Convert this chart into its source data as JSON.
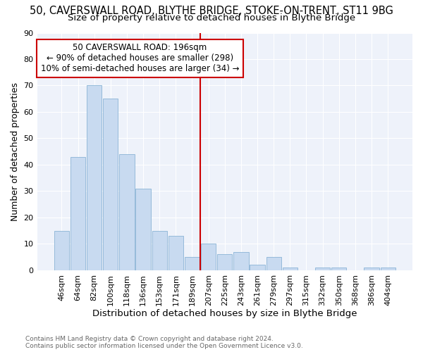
{
  "title": "50, CAVERSWALL ROAD, BLYTHE BRIDGE, STOKE-ON-TRENT, ST11 9BG",
  "subtitle": "Size of property relative to detached houses in Blythe Bridge",
  "xlabel": "Distribution of detached houses by size in Blythe Bridge",
  "ylabel": "Number of detached properties",
  "categories": [
    "46sqm",
    "64sqm",
    "82sqm",
    "100sqm",
    "118sqm",
    "136sqm",
    "153sqm",
    "171sqm",
    "189sqm",
    "207sqm",
    "225sqm",
    "243sqm",
    "261sqm",
    "279sqm",
    "297sqm",
    "315sqm",
    "332sqm",
    "350sqm",
    "368sqm",
    "386sqm",
    "404sqm"
  ],
  "values": [
    15,
    43,
    70,
    65,
    44,
    31,
    15,
    13,
    5,
    10,
    6,
    7,
    2,
    5,
    1,
    0,
    1,
    1,
    0,
    1,
    1
  ],
  "bar_color": "#c8daf0",
  "bar_edge_color": "#7aaad0",
  "vline_x": 8.5,
  "vline_color": "#cc0000",
  "annotation_line1": "50 CAVERSWALL ROAD: 196sqm",
  "annotation_line2": "← 90% of detached houses are smaller (298)",
  "annotation_line3": "10% of semi-detached houses are larger (34) →",
  "annotation_box_color": "#cc0000",
  "ylim": [
    0,
    90
  ],
  "yticks": [
    0,
    10,
    20,
    30,
    40,
    50,
    60,
    70,
    80,
    90
  ],
  "background_color": "#eef2fa",
  "grid_color": "#ffffff",
  "footer": "Contains HM Land Registry data © Crown copyright and database right 2024.\nContains public sector information licensed under the Open Government Licence v3.0.",
  "title_fontsize": 10.5,
  "subtitle_fontsize": 9.5,
  "xlabel_fontsize": 9.5,
  "ylabel_fontsize": 9,
  "tick_fontsize": 8,
  "annotation_fontsize": 8.5,
  "footer_fontsize": 6.5
}
